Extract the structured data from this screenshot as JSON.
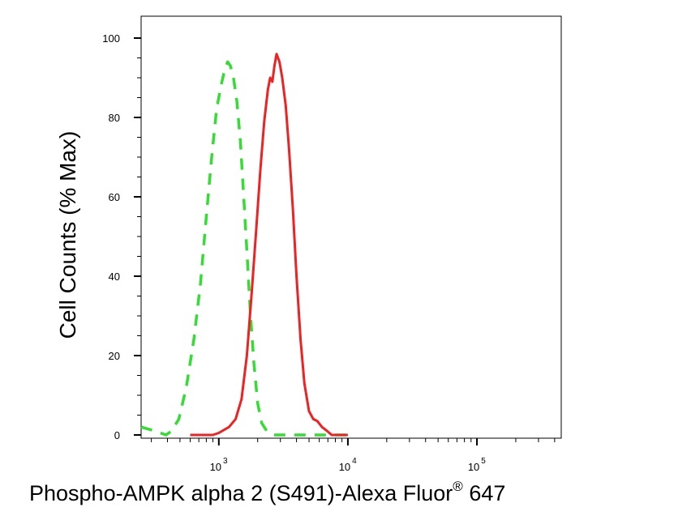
{
  "chart_data": {
    "type": "line",
    "xlabel": "Phospho-AMPK alpha 2 (S491)-Alexa Fluor",
    "xlabel_sup": "®",
    "xlabel_tail": " 647",
    "ylabel": "Cell Counts (% Max)",
    "x_scale": "log",
    "xlim": [
      250,
      450000
    ],
    "ylim": [
      0,
      100
    ],
    "y_ticks": [
      0,
      20,
      40,
      60,
      80,
      100
    ],
    "x_ticks": [
      {
        "value": 1000,
        "base": "10",
        "exp": "3"
      },
      {
        "value": 10000,
        "base": "10",
        "exp": "4"
      },
      {
        "value": 100000,
        "base": "10",
        "exp": "5"
      }
    ],
    "grid": false,
    "legend": "none",
    "series": [
      {
        "color": "#33dd33",
        "style": "dashed",
        "points": [
          [
            250,
            2
          ],
          [
            320,
            1
          ],
          [
            390,
            0
          ],
          [
            430,
            1
          ],
          [
            490,
            4
          ],
          [
            560,
            12
          ],
          [
            640,
            24
          ],
          [
            720,
            38
          ],
          [
            800,
            55
          ],
          [
            880,
            70
          ],
          [
            960,
            82
          ],
          [
            1040,
            88
          ],
          [
            1110,
            92
          ],
          [
            1170,
            94
          ],
          [
            1230,
            93
          ],
          [
            1300,
            90
          ],
          [
            1380,
            84
          ],
          [
            1470,
            74
          ],
          [
            1560,
            60
          ],
          [
            1660,
            45
          ],
          [
            1760,
            30
          ],
          [
            1870,
            18
          ],
          [
            2000,
            8
          ],
          [
            2150,
            3
          ],
          [
            2350,
            1
          ],
          [
            2600,
            0
          ],
          [
            3000,
            0
          ],
          [
            3500,
            0
          ],
          [
            4000,
            0
          ],
          [
            6000,
            0
          ],
          [
            10000,
            0
          ]
        ]
      },
      {
        "color": "#ee2222",
        "style": "solid",
        "points": [
          [
            600,
            0
          ],
          [
            900,
            0
          ],
          [
            1000,
            0.5
          ],
          [
            1200,
            2
          ],
          [
            1350,
            4
          ],
          [
            1500,
            9
          ],
          [
            1650,
            20
          ],
          [
            1800,
            36
          ],
          [
            1950,
            52
          ],
          [
            2100,
            67
          ],
          [
            2250,
            79
          ],
          [
            2400,
            87
          ],
          [
            2500,
            90
          ],
          [
            2600,
            89
          ],
          [
            2700,
            93
          ],
          [
            2800,
            96
          ],
          [
            2950,
            94
          ],
          [
            3100,
            90
          ],
          [
            3300,
            83
          ],
          [
            3500,
            72
          ],
          [
            3750,
            57
          ],
          [
            4000,
            40
          ],
          [
            4300,
            24
          ],
          [
            4600,
            13
          ],
          [
            5000,
            6
          ],
          [
            5400,
            4
          ],
          [
            5800,
            3.5
          ],
          [
            6300,
            2
          ],
          [
            6900,
            1
          ],
          [
            7500,
            0
          ],
          [
            9000,
            0
          ],
          [
            10000,
            0
          ]
        ]
      }
    ]
  }
}
